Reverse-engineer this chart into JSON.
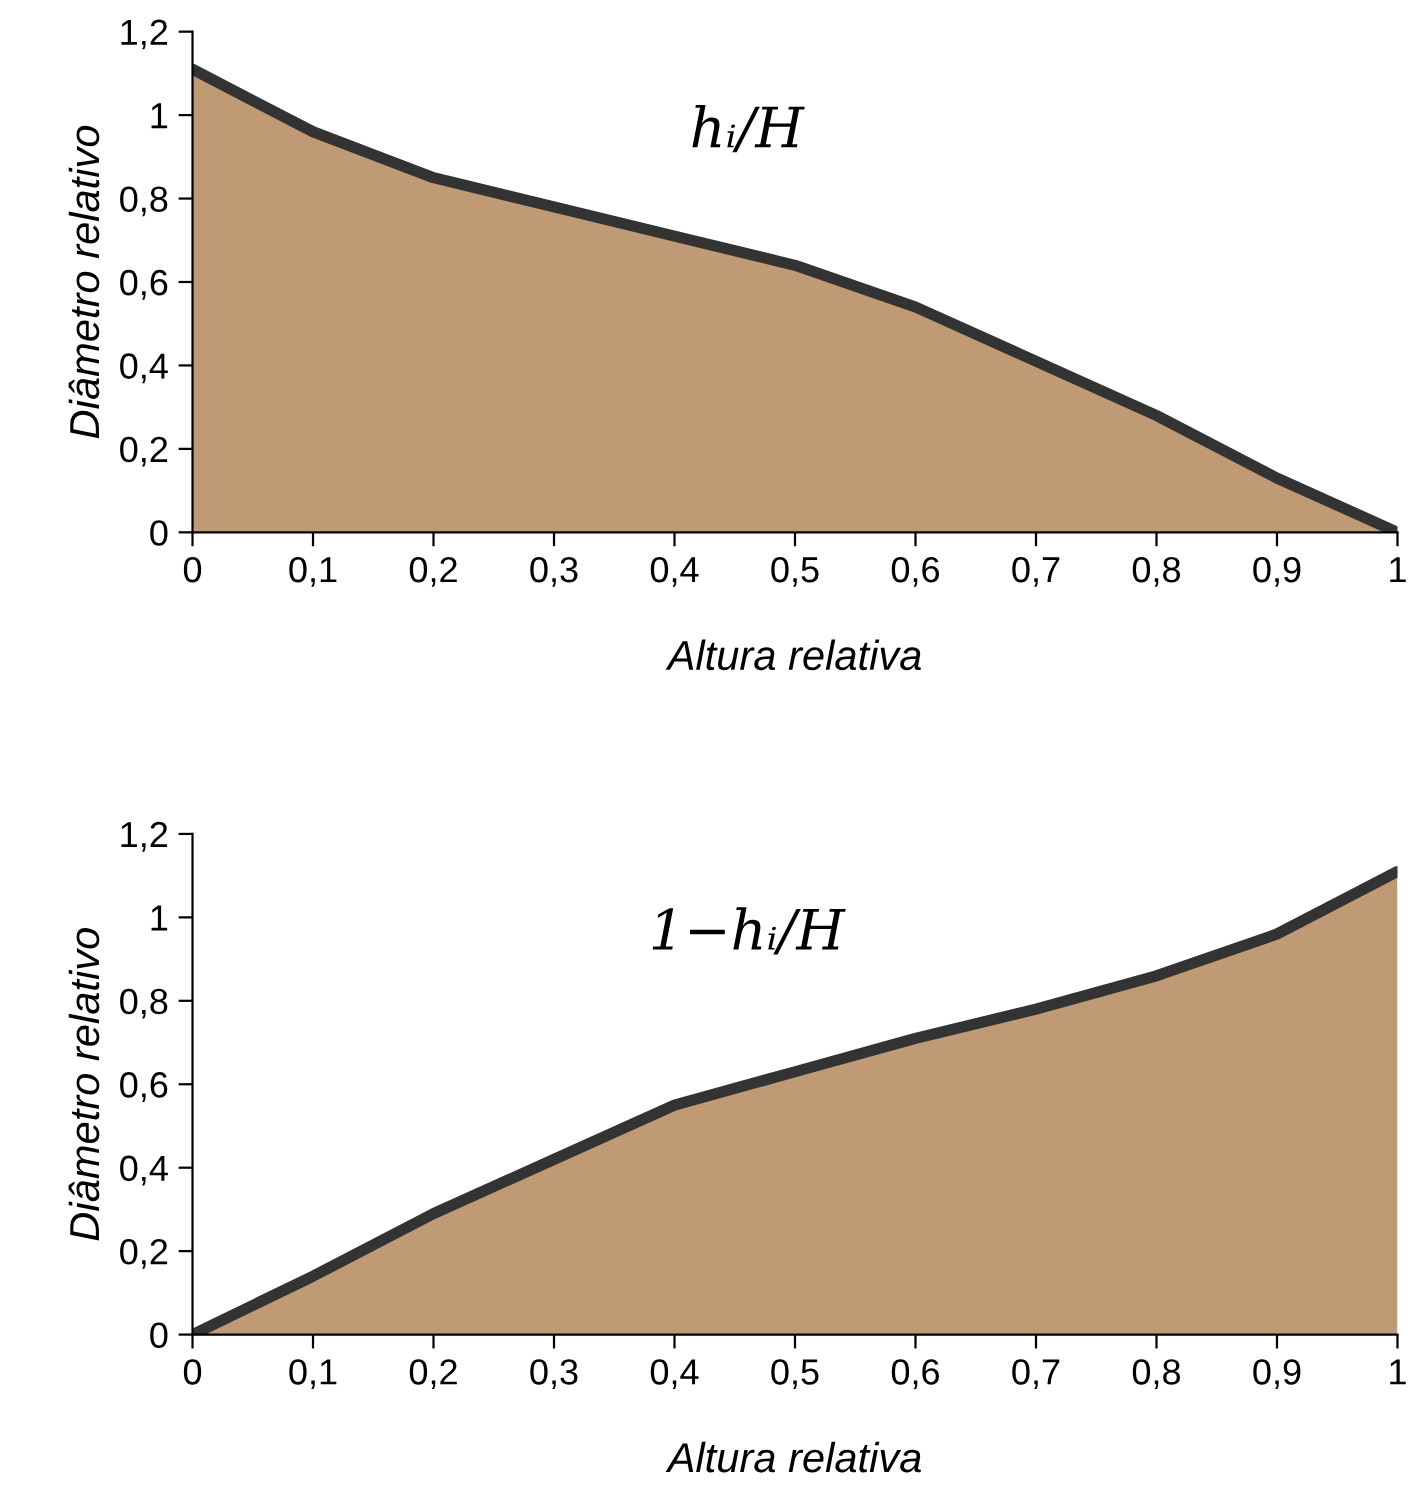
{
  "chart_data": [
    {
      "type": "area",
      "xlabel": "Altura relativa",
      "ylabel": "Diâmetro relativo",
      "annotations": [
        "hᵢ/H"
      ],
      "x": [
        0,
        0.1,
        0.2,
        0.3,
        0.4,
        0.5,
        0.6,
        0.7,
        0.8,
        0.9,
        1
      ],
      "series": [
        {
          "color": "#c09a74",
          "values": [
            1.11,
            0.96,
            0.85,
            0.78,
            0.71,
            0.64,
            0.54,
            0.41,
            0.28,
            0.13,
            0
          ]
        }
      ],
      "xlim": [
        0,
        1
      ],
      "xticks": [
        0,
        {
          "value": 0.1,
          "label": "0,1"
        },
        {
          "value": 0.2,
          "label": "0,2"
        },
        {
          "value": 0.3,
          "label": "0,3"
        },
        {
          "value": 0.4,
          "label": "0,4"
        },
        {
          "value": 0.5,
          "label": "0,5"
        },
        {
          "value": 0.6,
          "label": "0,6"
        },
        {
          "value": 0.7,
          "label": "0,7"
        },
        {
          "value": 0.8,
          "label": "0,8"
        },
        {
          "value": 0.9,
          "label": "0,9"
        },
        1
      ],
      "ylim": [
        0,
        1.2
      ],
      "yticks": [
        0,
        {
          "value": 0.2,
          "label": "0,2"
        },
        {
          "value": 0.4,
          "label": "0,4"
        },
        {
          "value": 0.6,
          "label": "0,6"
        },
        {
          "value": 0.8,
          "label": "0,8"
        },
        1,
        {
          "value": 1.2,
          "label": "1,2"
        }
      ],
      "grid": false
    },
    {
      "type": "area",
      "xlabel": "Altura relativa",
      "ylabel": "Diâmetro relativo",
      "annotations": [
        "1−hᵢ/H"
      ],
      "x": [
        0,
        0.1,
        0.2,
        0.3,
        0.4,
        0.5,
        0.6,
        0.7,
        0.8,
        0.9,
        1
      ],
      "series": [
        {
          "color": "#c09a74",
          "values": [
            0,
            0.14,
            0.29,
            0.42,
            0.55,
            0.63,
            0.71,
            0.78,
            0.86,
            0.96,
            1.11
          ]
        }
      ],
      "xlim": [
        0,
        1
      ],
      "xticks": [
        0,
        {
          "value": 0.1,
          "label": "0,1"
        },
        {
          "value": 0.2,
          "label": "0,2"
        },
        {
          "value": 0.3,
          "label": "0,3"
        },
        {
          "value": 0.4,
          "label": "0,4"
        },
        {
          "value": 0.5,
          "label": "0,5"
        },
        {
          "value": 0.6,
          "label": "0,6"
        },
        {
          "value": 0.7,
          "label": "0,7"
        },
        {
          "value": 0.8,
          "label": "0,8"
        },
        {
          "value": 0.9,
          "label": "0,9"
        },
        1
      ],
      "ylim": [
        0,
        1.2
      ],
      "yticks": [
        0,
        {
          "value": 0.2,
          "label": "0,2"
        },
        {
          "value": 0.4,
          "label": "0,4"
        },
        {
          "value": 0.6,
          "label": "0,6"
        },
        {
          "value": 0.8,
          "label": "0,8"
        },
        1,
        {
          "value": 1.2,
          "label": "1,2"
        }
      ],
      "grid": false
    }
  ]
}
